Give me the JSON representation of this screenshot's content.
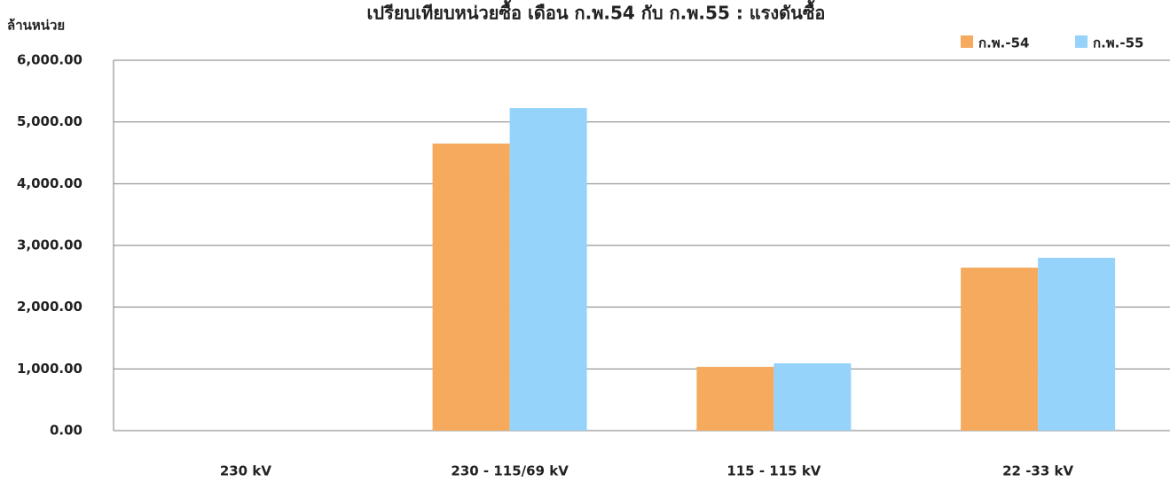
{
  "chart_data": {
    "type": "bar",
    "title": "เปรียบเทียบหน่วยซื้อ เดือน ก.พ.54 กับ ก.พ.55 : แรงดันซื้อ",
    "y_label": "ล้านหน่วย",
    "categories": [
      "230 kV",
      "230 - 115/69 kV",
      "115 - 115 kV",
      "22 -33 kV"
    ],
    "series": [
      {
        "name": "ก.พ.-54",
        "color": "#f5aa5d",
        "values": [
          0,
          4650,
          1033,
          2640
        ]
      },
      {
        "name": "ก.พ.-55",
        "color": "#95d3fb",
        "values": [
          0,
          5225,
          1090,
          2800
        ]
      }
    ],
    "ylim": [
      0,
      6000
    ],
    "yticks": [
      {
        "value": 0,
        "label": "0.00"
      },
      {
        "value": 1000,
        "label": "1,000.00"
      },
      {
        "value": 2000,
        "label": "2,000.00"
      },
      {
        "value": 3000,
        "label": "3,000.00"
      },
      {
        "value": 4000,
        "label": "4,000.00"
      },
      {
        "value": 5000,
        "label": "5,000.00"
      },
      {
        "value": 6000,
        "label": "6,000.00"
      }
    ],
    "grid": true,
    "legend": "top-right"
  }
}
